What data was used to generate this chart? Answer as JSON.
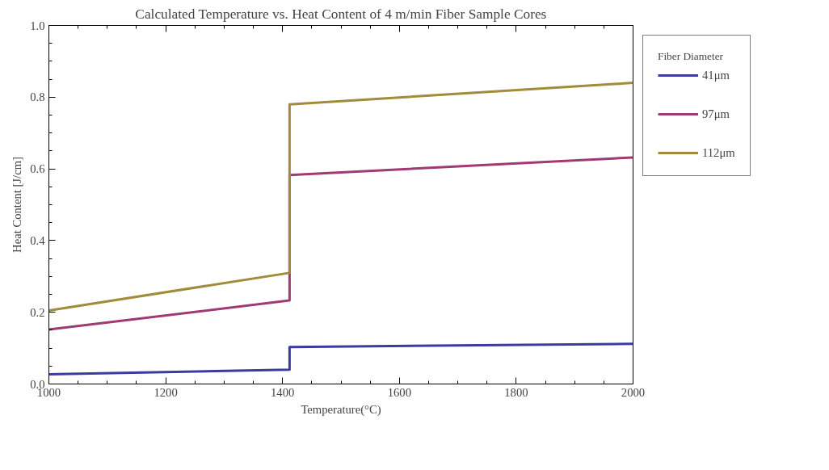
{
  "chart_data": {
    "type": "line",
    "title": "Calculated Temperature vs. Heat Content of 4 m/min Fiber Sample Cores",
    "xlabel": "Temperature(°C)",
    "ylabel": "Heat Content [J/cm]",
    "legend_title": "Fiber Diameter",
    "series": [
      {
        "name": "41μm",
        "color": "#3b3ba0",
        "x": [
          1000,
          1412,
          1412,
          2000
        ],
        "values": [
          0.027,
          0.04,
          0.103,
          0.112
        ]
      },
      {
        "name": "97μm",
        "color": "#a03a72",
        "x": [
          1000,
          1412,
          1412,
          2000
        ],
        "values": [
          0.152,
          0.233,
          0.583,
          0.632
        ]
      },
      {
        "name": "112μm",
        "color": "#a08c3a",
        "x": [
          1000,
          1412,
          1412,
          2000
        ],
        "values": [
          0.205,
          0.31,
          0.78,
          0.84
        ]
      }
    ],
    "xlim": [
      1000,
      2000
    ],
    "ylim": [
      0,
      1.0
    ],
    "xticks": [
      1000,
      1200,
      1400,
      1600,
      1800,
      2000
    ],
    "yticks": [
      {
        "value": 0,
        "label": "0.0"
      },
      0.2,
      0.4,
      0.6,
      0.8,
      {
        "value": 1.0,
        "label": "1.0"
      }
    ],
    "grid": false,
    "legend": "right",
    "marker": "none",
    "line_style": "solid"
  }
}
